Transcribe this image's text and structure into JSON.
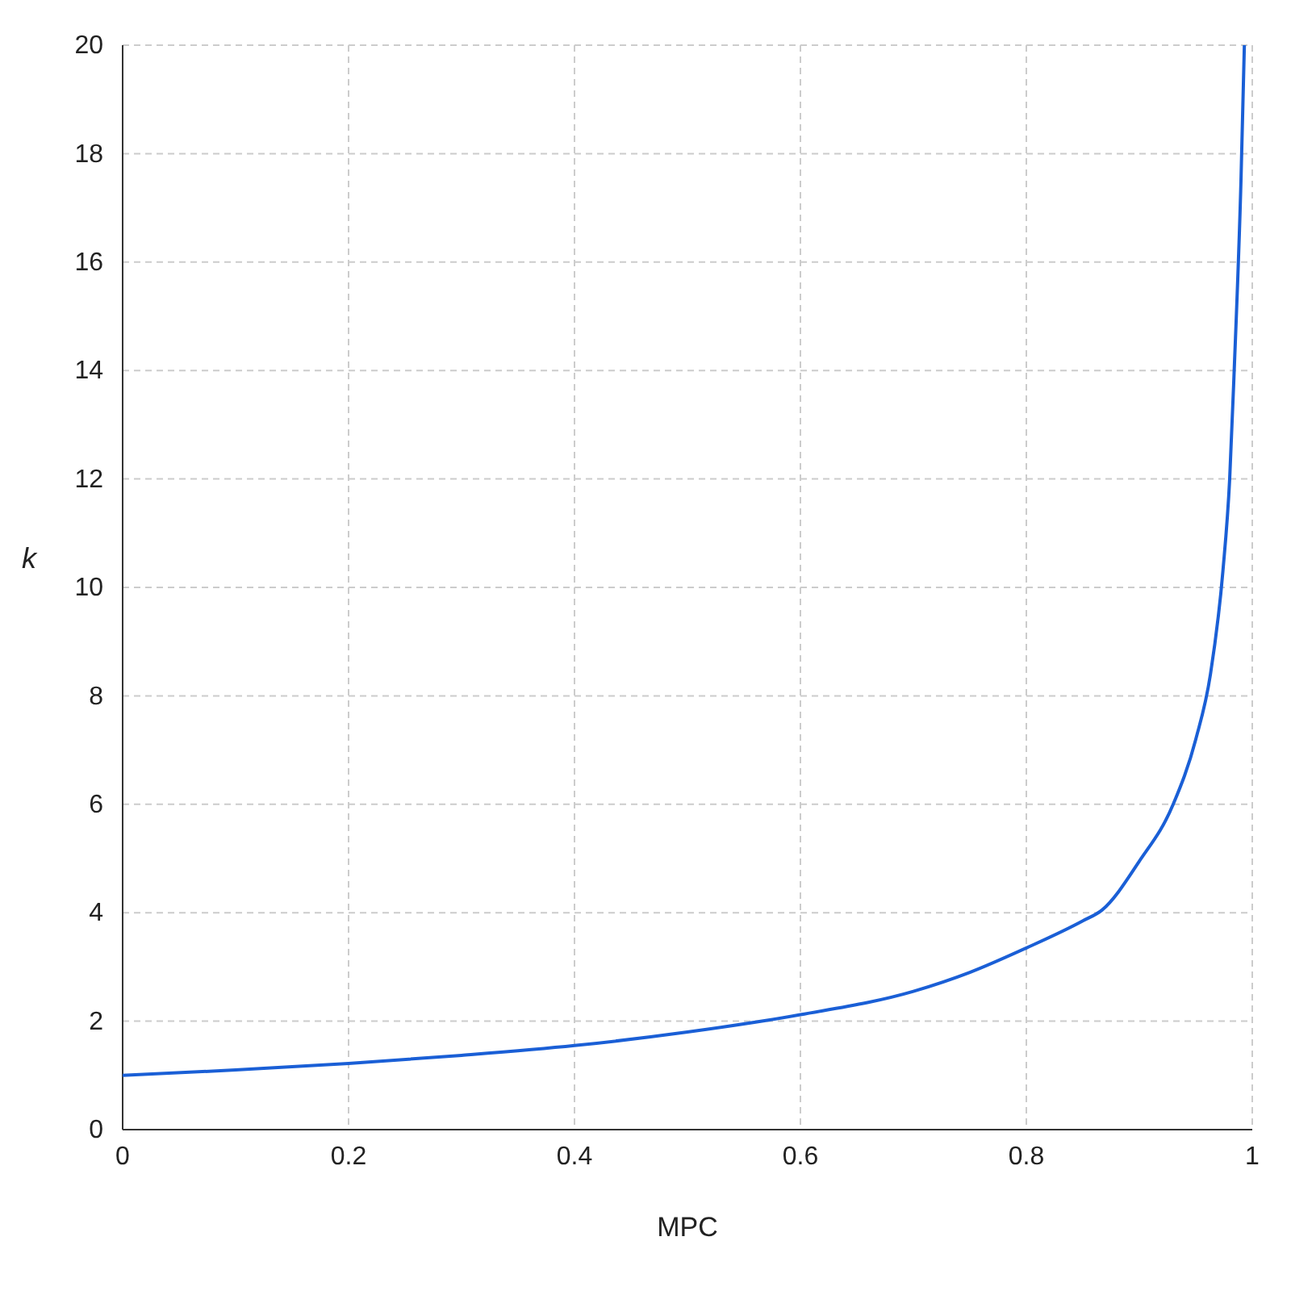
{
  "chart_data": {
    "type": "line",
    "xlabel": "MPC",
    "ylabel": "k",
    "x": [
      0,
      0.1,
      0.2,
      0.3,
      0.4,
      0.5,
      0.6,
      0.7,
      0.75,
      0.8,
      0.85,
      0.867,
      0.9,
      0.93,
      0.95,
      0.963,
      0.974,
      0.98,
      0.984,
      0.99,
      0.993
    ],
    "series": [
      {
        "color": "#1a5fd6",
        "values": [
          1,
          1.1,
          1.22,
          1.37,
          1.55,
          1.8,
          2.12,
          2.55,
          2.9,
          3.35,
          3.85,
          4.05,
          4.95,
          6,
          7.2,
          8.4,
          10.3,
          12,
          14,
          17.5,
          20
        ]
      }
    ],
    "xlim": [
      0,
      1
    ],
    "ylim": [
      0,
      20
    ],
    "xticks": [
      0,
      0.2,
      0.4,
      0.6,
      0.8,
      1
    ],
    "yticks": [
      0,
      2,
      4,
      6,
      8,
      10,
      12,
      14,
      16,
      18,
      20
    ],
    "grid": true,
    "marker": "none",
    "line_style": "solid"
  }
}
